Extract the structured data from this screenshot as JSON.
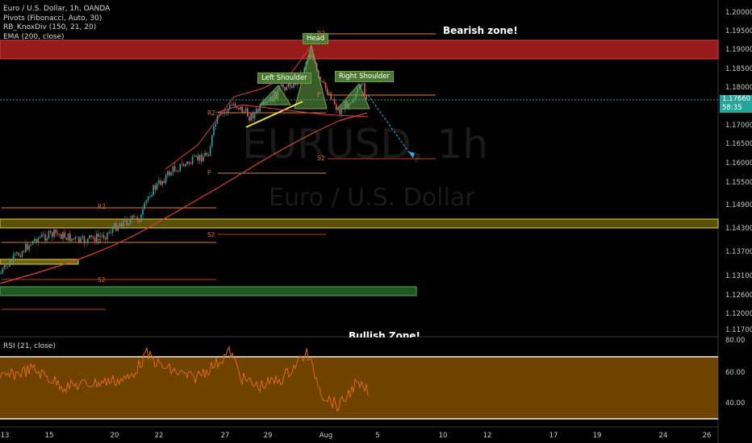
{
  "legend": {
    "symbol": "Euro / U.S. Dollar, 1h, OANDA",
    "pivots": "Pivots (Fibonacci, Auto, 30)",
    "knoxdiv": "RB_KnoxDiv (150, 21, 20)",
    "ema": "EMA (200, close)"
  },
  "rsi_label": "RSI (21, close)",
  "watermark": {
    "symbol": "EURUSD, 1h",
    "name": "Euro / U.S. Dollar"
  },
  "annotations": {
    "head": "Head",
    "left_shoulder": "Left Shoulder",
    "right_shoulder": "Right Shoulder",
    "bearish_zone": "Bearish zone!",
    "bullish_zone": "Bullish Zone!"
  },
  "pivot_labels": {
    "r2_a": "R2",
    "p_a": "P",
    "r2_b": "R2",
    "p_b": "P",
    "s2_a": "S2",
    "s2_b": "S2",
    "s2_c": "S2",
    "r2_head": "R2",
    "p_right": "P"
  },
  "price_axis": [
    "1.20000",
    "1.19500",
    "1.19000",
    "1.18500",
    "1.18000",
    "1.17500",
    "1.17000",
    "1.16500",
    "1.16000",
    "1.15500",
    "1.14900",
    "1.14300",
    "1.13700",
    "1.13100",
    "1.12600",
    "1.12000",
    "1.11700"
  ],
  "current_price": {
    "price": "1.17660",
    "countdown": "58:35"
  },
  "rsi_axis": [
    "80.00",
    "60.00",
    "40.00"
  ],
  "time_axis": [
    "13",
    "15",
    "20",
    "22",
    "27",
    "29",
    "Aug",
    "5",
    "10",
    "12",
    "17",
    "19",
    "24",
    "26"
  ],
  "colors": {
    "bull": "#26a69a",
    "bear": "#ef5350",
    "ema": "#d84040",
    "bearish_zone": "#b02020",
    "bullish_zone": "#2e7d32",
    "support_zone": "#c9b418",
    "rsi_fill": "#7a4a00",
    "rsi_line": "#e06a18"
  }
}
